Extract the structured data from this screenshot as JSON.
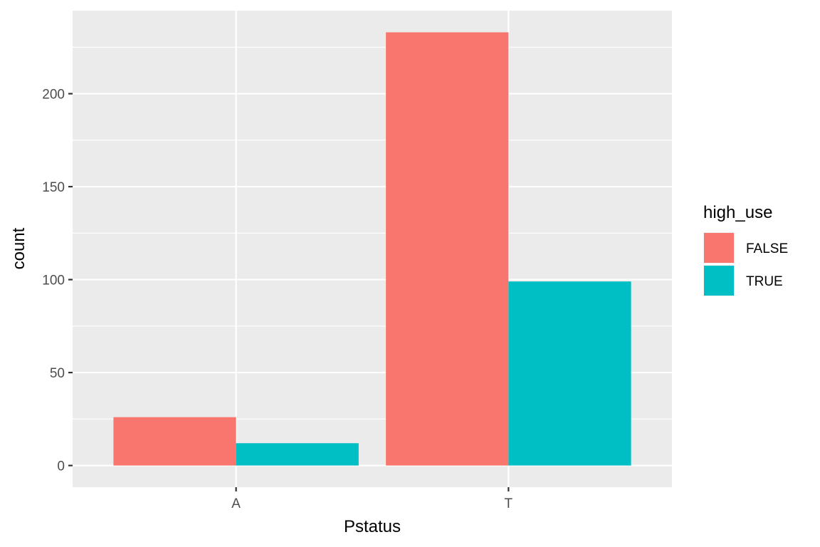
{
  "chart_data": {
    "type": "bar",
    "title": "",
    "xlabel": "Pstatus",
    "ylabel": "count",
    "categories": [
      "A",
      "T"
    ],
    "series": [
      {
        "name": "FALSE",
        "values": [
          26,
          233
        ],
        "color": "#F8766D"
      },
      {
        "name": "TRUE",
        "values": [
          12,
          99
        ],
        "color": "#00BFC4"
      }
    ],
    "ylim": [
      -11.65,
      244.65
    ],
    "yticks": [
      0,
      50,
      100,
      150,
      200
    ],
    "grid": true,
    "panel_background": "#EBEBEB",
    "legend": {
      "title": "high_use",
      "position": "right"
    }
  }
}
